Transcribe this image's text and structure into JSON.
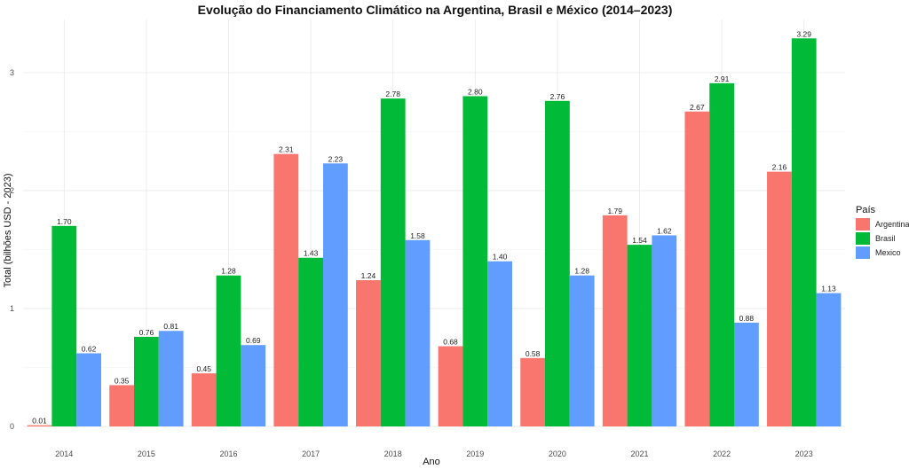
{
  "chart_data": {
    "type": "bar",
    "title": "Evolução do Financiamento Climático na Argentina, Brasil e México (2014–2023)",
    "xlabel": "Ano",
    "ylabel": "Total (bilhões USD - 2023)",
    "categories": [
      "2014",
      "2015",
      "2016",
      "2017",
      "2018",
      "2019",
      "2020",
      "2021",
      "2022",
      "2023"
    ],
    "series": [
      {
        "name": "Argentina",
        "color": "#F8766D",
        "values": [
          0.01,
          0.35,
          0.45,
          2.31,
          1.24,
          0.68,
          0.58,
          1.79,
          2.67,
          2.16
        ]
      },
      {
        "name": "Brasil",
        "color": "#00BA38",
        "values": [
          1.7,
          0.76,
          1.28,
          1.43,
          2.78,
          2.8,
          2.76,
          1.54,
          2.91,
          3.29
        ]
      },
      {
        "name": "Mexico",
        "color": "#619CFF",
        "values": [
          0.62,
          0.81,
          0.69,
          2.23,
          1.58,
          1.4,
          1.28,
          1.62,
          0.88,
          1.13
        ]
      }
    ],
    "ylim": [
      0,
      3.45
    ],
    "yticks": [
      "0",
      "1",
      "2",
      "3"
    ],
    "legend": {
      "title": "País",
      "placement": "right"
    },
    "grid": true
  }
}
